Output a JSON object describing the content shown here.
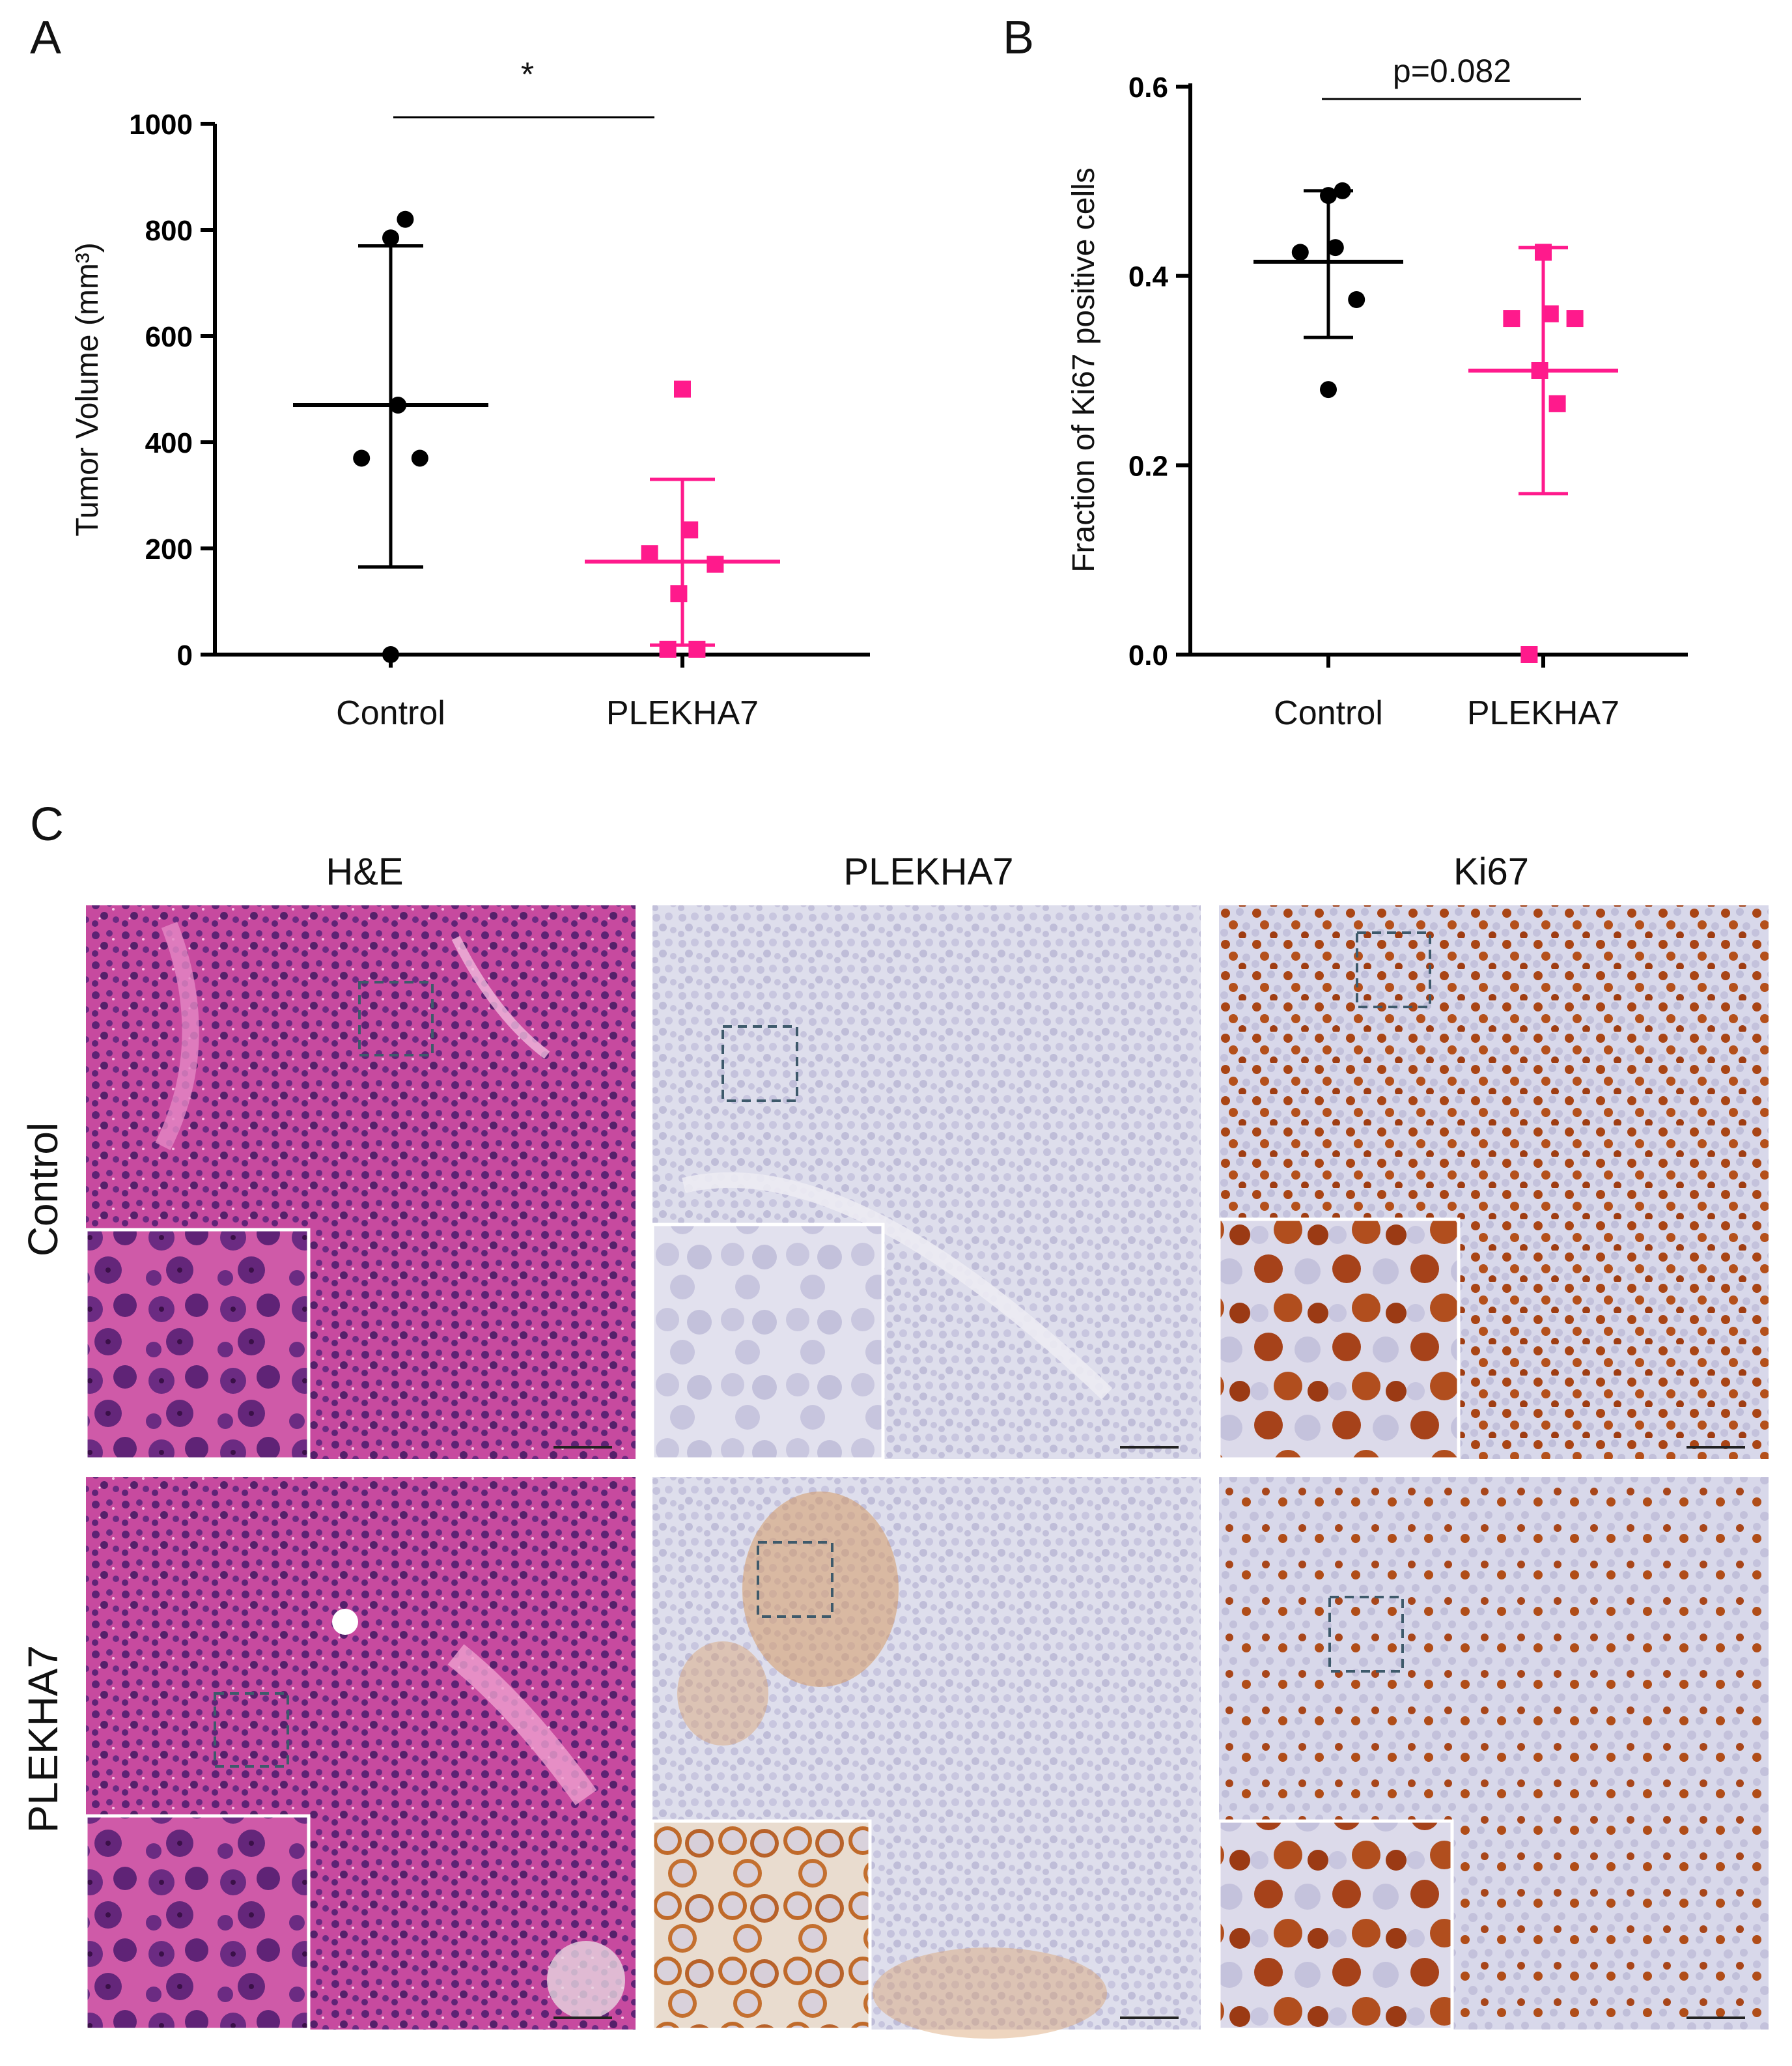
{
  "panel_labels": {
    "a": "A",
    "b": "B",
    "c": "C"
  },
  "chart_data": [
    {
      "id": "A",
      "type": "scatter",
      "categories": [
        "Control",
        "PLEKHA7"
      ],
      "ylabel": "Tumor Volume (mm³)",
      "ylim": [
        0,
        1000
      ],
      "yticks": [
        "0",
        "200",
        "400",
        "600",
        "800",
        "1000"
      ],
      "significance": "*",
      "series": [
        {
          "category": "Control",
          "color": "#000000",
          "marker": "circle",
          "values": [
            820,
            785,
            470,
            370,
            370,
            0
          ],
          "mean": 470,
          "sd_low": 165,
          "sd_high": 770
        },
        {
          "category": "PLEKHA7",
          "color": "#ff1a8c",
          "marker": "square",
          "values": [
            500,
            235,
            190,
            170,
            115,
            10,
            10
          ],
          "mean": 175,
          "sd_low": 18,
          "sd_high": 330
        }
      ]
    },
    {
      "id": "B",
      "type": "scatter",
      "categories": [
        "Control",
        "PLEKHA7"
      ],
      "ylabel": "Fraction of Ki67 positive cells",
      "ylim": [
        0,
        0.6
      ],
      "yticks": [
        "0.0",
        "0.2",
        "0.4",
        "0.6"
      ],
      "significance": "p=0.082",
      "series": [
        {
          "category": "Control",
          "color": "#000000",
          "marker": "circle",
          "values": [
            0.49,
            0.485,
            0.43,
            0.425,
            0.375,
            0.28
          ],
          "mean": 0.415,
          "sd_low": 0.335,
          "sd_high": 0.49
        },
        {
          "category": "PLEKHA7",
          "color": "#ff1a8c",
          "marker": "square",
          "values": [
            0.425,
            0.36,
            0.355,
            0.355,
            0.3,
            0.265,
            0.0
          ],
          "mean": 0.3,
          "sd_low": 0.17,
          "sd_high": 0.43
        }
      ]
    }
  ],
  "micrographs": {
    "column_titles": [
      "H&E",
      "PLEKHA7",
      "Ki67"
    ],
    "row_labels": [
      "Control",
      "PLEKHA7"
    ],
    "stain_colors": {
      "he_bg": "#c63f9a",
      "he_nuclei": "#5a1f6e",
      "ihc_bg": "#dcdcec",
      "ihc_nuclei": "#b9b7d6",
      "dab": "#c9783a",
      "ki67_pos": "#a84414",
      "roi_box": "#3e5a6b"
    }
  }
}
